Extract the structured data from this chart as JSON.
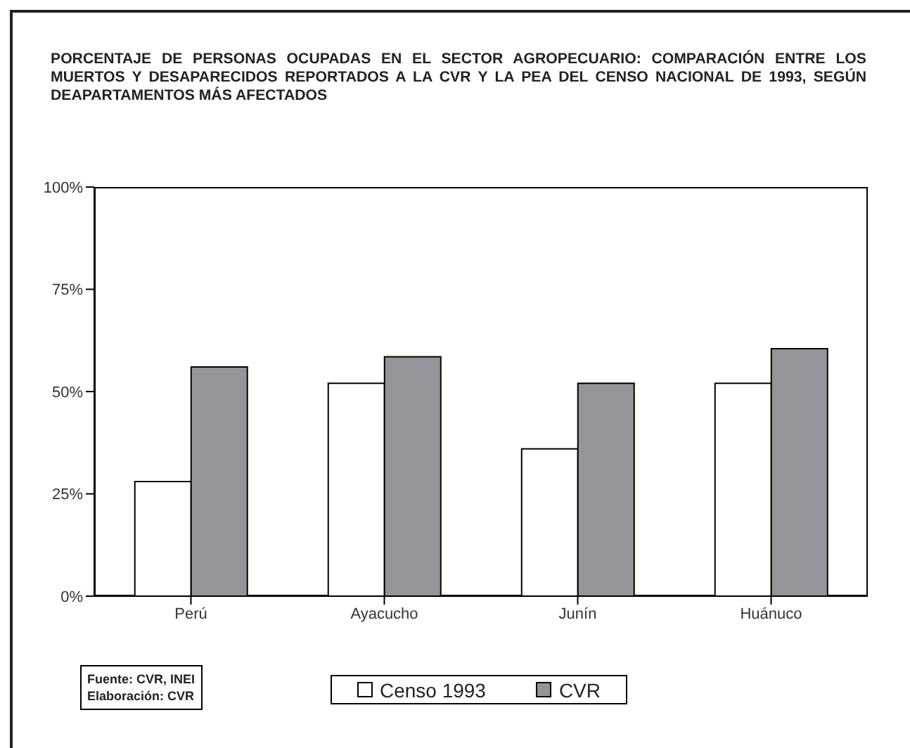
{
  "chart_data": {
    "type": "bar",
    "title": "PORCENTAJE DE PERSONAS OCUPADAS EN EL SECTOR AGROPECUARIO: COMPARACIÓN ENTRE LOS MUERTOS Y DESAPARECIDOS REPORTADOS A LA CVR Y LA PEA DEL CENSO NACIONAL DE 1993, SEGÚN DEAPARTAMENTOS MÁS AFECTADOS",
    "categories": [
      "Perú",
      "Ayacucho",
      "Junín",
      "Huánuco"
    ],
    "series": [
      {
        "name": "Censo 1993",
        "color": "#ffffff",
        "values": [
          28,
          52,
          36,
          52
        ]
      },
      {
        "name": "CVR",
        "color": "#939598",
        "values": [
          56,
          58.5,
          52,
          60.5
        ]
      }
    ],
    "ylim": [
      0,
      100
    ],
    "yticks": [
      {
        "value": 0,
        "label": "0%"
      },
      {
        "value": 25,
        "label": "25%"
      },
      {
        "value": 50,
        "label": "50%"
      },
      {
        "value": 75,
        "label": "75%"
      },
      {
        "value": 100,
        "label": "100%"
      }
    ],
    "grid": false,
    "legend": "bottom",
    "annotations": [
      "Fuente: CVR, INEI",
      "Elaboración: CVR"
    ]
  }
}
